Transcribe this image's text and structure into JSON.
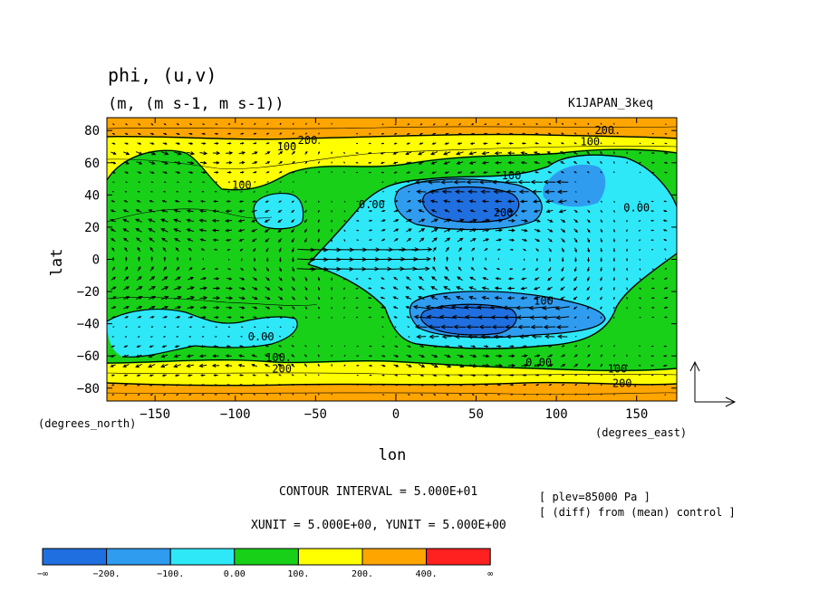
{
  "chart_data": {
    "type": "heatmap",
    "title": "phi, (u,v)",
    "subtitle": "(m, (m s-1, m s-1))",
    "experiment": "K1JAPAN_3keq",
    "xlabel": "lon",
    "ylabel": "lat",
    "xunit_label": "(degrees_east)",
    "yunit_label": "(degrees_north)",
    "xlim": [
      -180,
      175
    ],
    "ylim": [
      -88,
      88
    ],
    "x_ticks": [
      -150,
      -100,
      -50,
      0,
      50,
      100,
      150
    ],
    "x_tick_labels": [
      "−150",
      "−100",
      "−50",
      "0",
      "50",
      "100",
      "150"
    ],
    "y_ticks": [
      80,
      60,
      40,
      20,
      0,
      -20,
      -40,
      -60,
      -80
    ],
    "y_tick_labels": [
      "80",
      "60",
      "40",
      "20",
      "0",
      "−20",
      "−40",
      "−60",
      "−80"
    ],
    "contour_interval_text": "CONTOUR INTERVAL = 5.000E+01",
    "vector_unit_text": "XUNIT = 5.000E+00, YUNIT = 5.000E+00",
    "info_lines": [
      "[ plev=85000 Pa ]",
      "[ (diff) from (mean) control ]"
    ],
    "colorbar": {
      "levels": [
        "−∞",
        "−200.",
        "−100.",
        "0.00",
        "100.",
        "200.",
        "400.",
        "∞"
      ],
      "colors": [
        "#1f6fe0",
        "#2f9cf0",
        "#2ee8f8",
        "#18d018",
        "#ffff00",
        "#ffa500",
        "#ff2020"
      ]
    },
    "contour_labels": [
      {
        "text": "100",
        "lon": -68,
        "lat": 70
      },
      {
        "text": "200",
        "lon": -55,
        "lat": 74
      },
      {
        "text": "100",
        "lon": -96,
        "lat": 46
      },
      {
        "text": "200.",
        "lon": 132,
        "lat": 80
      },
      {
        "text": "100",
        "lon": 121,
        "lat": 73
      },
      {
        "text": "0.00",
        "lon": -15,
        "lat": 34
      },
      {
        "text": "100",
        "lon": 72,
        "lat": 52
      },
      {
        "text": "200.",
        "lon": 69,
        "lat": 29
      },
      {
        "text": "0.00",
        "lon": 150,
        "lat": 32
      },
      {
        "text": "100",
        "lon": 92,
        "lat": -26
      },
      {
        "text": "0.00",
        "lon": -84,
        "lat": -48
      },
      {
        "text": "100.",
        "lon": -73,
        "lat": -61
      },
      {
        "text": "200",
        "lon": -71,
        "lat": -68
      },
      {
        "text": "0.00",
        "lon": 89,
        "lat": -64
      },
      {
        "text": "100",
        "lon": 138,
        "lat": -68
      },
      {
        "text": "200.",
        "lon": 143,
        "lat": -77
      }
    ]
  }
}
